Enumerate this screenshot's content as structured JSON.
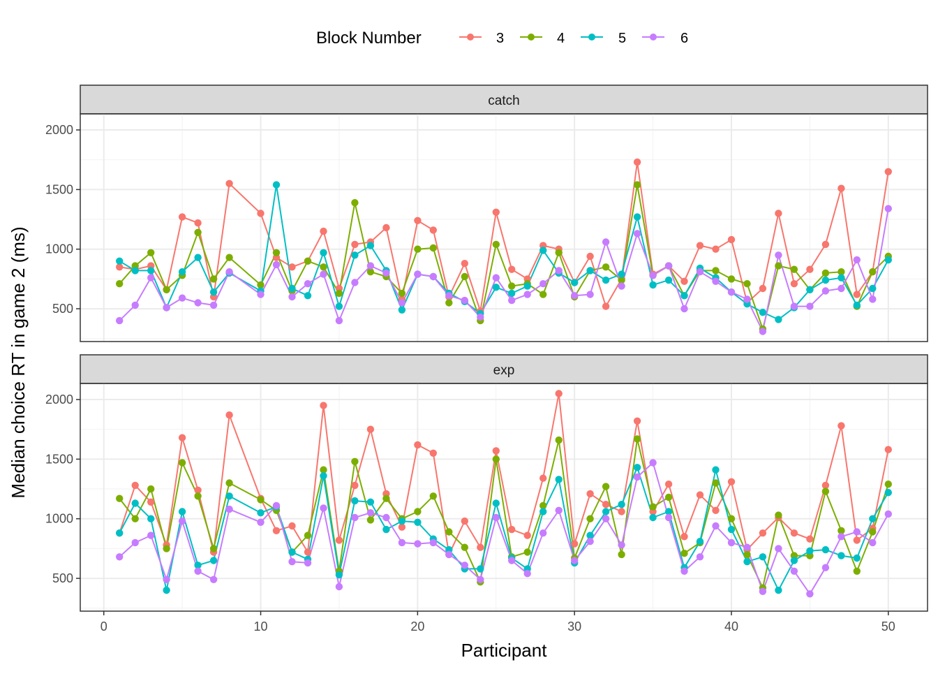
{
  "legend": {
    "title": "Block Number",
    "position": "top",
    "items": [
      {
        "label": "3",
        "color": "#F8766D"
      },
      {
        "label": "4",
        "color": "#7CAE00"
      },
      {
        "label": "5",
        "color": "#00BFC4"
      },
      {
        "label": "6",
        "color": "#C77CFF"
      }
    ]
  },
  "axes": {
    "xlabel": "Participant",
    "ylabel": "Median choice RT in game 2 (ms)",
    "xticks": [
      0,
      10,
      20,
      30,
      40,
      50
    ],
    "yticks": [
      500,
      1000,
      1500,
      2000
    ]
  },
  "chart_data": {
    "type": "line",
    "xlabel": "Participant",
    "ylabel": "Median choice RT in game 2 (ms)",
    "xlim": [
      -1.5,
      52.5
    ],
    "grid": true,
    "legend_position": "top",
    "panels": [
      {
        "strip": "catch",
        "ylim": [
          225,
          2135
        ],
        "series": [
          {
            "name": "3",
            "x": [
              1,
              2,
              3,
              4,
              5,
              6,
              7,
              8,
              10,
              11,
              12,
              13,
              14,
              15,
              16,
              17,
              18,
              19,
              20,
              21,
              22,
              23,
              24,
              25,
              26,
              27,
              28,
              29,
              30,
              31,
              32,
              33,
              34,
              35,
              36,
              37,
              38,
              39,
              40,
              41,
              42,
              43,
              44,
              45,
              46,
              47,
              48,
              49,
              50
            ],
            "y": [
              850,
              830,
              860,
              660,
              1270,
              1220,
              600,
              1550,
              1300,
              930,
              850,
              900,
              1150,
              670,
              1040,
              1060,
              1180,
              580,
              1240,
              1160,
              600,
              880,
              480,
              1310,
              830,
              750,
              1030,
              1000,
              720,
              940,
              520,
              750,
              1730,
              790,
              860,
              730,
              1030,
              1000,
              1080,
              550,
              670,
              1300,
              710,
              830,
              1040,
              1510,
              620,
              810,
              1650
            ]
          },
          {
            "name": "4",
            "x": [
              1,
              2,
              3,
              4,
              5,
              6,
              7,
              8,
              10,
              11,
              12,
              13,
              14,
              15,
              16,
              17,
              18,
              19,
              20,
              21,
              22,
              23,
              24,
              25,
              26,
              27,
              28,
              29,
              30,
              31,
              32,
              33,
              34,
              35,
              36,
              37,
              38,
              39,
              40,
              41,
              42,
              43,
              44,
              45,
              46,
              47,
              48,
              49,
              50
            ],
            "y": [
              710,
              860,
              970,
              660,
              780,
              1140,
              750,
              930,
              700,
              970,
              650,
              900,
              850,
              630,
              1390,
              810,
              770,
              630,
              1000,
              1010,
              550,
              770,
              400,
              1040,
              690,
              710,
              620,
              970,
              600,
              820,
              850,
              740,
              1540,
              780,
              860,
              610,
              820,
              820,
              750,
              710,
              330,
              860,
              830,
              660,
              800,
              810,
              520,
              810,
              940
            ]
          },
          {
            "name": "5",
            "x": [
              1,
              2,
              3,
              4,
              5,
              6,
              7,
              8,
              10,
              11,
              12,
              13,
              14,
              15,
              16,
              17,
              18,
              19,
              20,
              21,
              22,
              23,
              24,
              25,
              26,
              27,
              28,
              29,
              30,
              31,
              32,
              33,
              34,
              35,
              36,
              37,
              38,
              39,
              40,
              41,
              42,
              43,
              44,
              45,
              46,
              47,
              48,
              49,
              50
            ],
            "y": [
              900,
              820,
              820,
              510,
              810,
              930,
              640,
              800,
              650,
              1540,
              670,
              610,
              970,
              520,
              950,
              1030,
              820,
              490,
              790,
              770,
              630,
              560,
              460,
              680,
              630,
              690,
              990,
              800,
              720,
              820,
              740,
              790,
              1270,
              700,
              740,
              610,
              840,
              760,
              640,
              540,
              470,
              410,
              510,
              660,
              740,
              760,
              530,
              670,
              910
            ]
          },
          {
            "name": "6",
            "x": [
              1,
              2,
              3,
              4,
              5,
              6,
              7,
              8,
              10,
              11,
              12,
              13,
              14,
              15,
              16,
              17,
              18,
              19,
              20,
              21,
              22,
              23,
              24,
              25,
              26,
              27,
              28,
              29,
              30,
              31,
              32,
              33,
              34,
              35,
              36,
              37,
              38,
              39,
              40,
              41,
              42,
              43,
              44,
              45,
              46,
              47,
              48,
              49,
              50
            ],
            "y": [
              400,
              530,
              760,
              510,
              590,
              550,
              530,
              810,
              620,
              870,
              600,
              710,
              790,
              400,
              720,
              860,
              800,
              550,
              790,
              770,
              610,
              570,
              430,
              760,
              570,
              620,
              710,
              820,
              610,
              620,
              1060,
              690,
              1130,
              780,
              860,
              500,
              810,
              730,
              640,
              580,
              310,
              950,
              520,
              520,
              650,
              670,
              910,
              580,
              1340
            ]
          }
        ]
      },
      {
        "strip": "exp",
        "ylim": [
          225,
          2135
        ],
        "series": [
          {
            "name": "3",
            "x": [
              1,
              2,
              3,
              4,
              5,
              6,
              7,
              8,
              10,
              11,
              12,
              13,
              14,
              15,
              16,
              17,
              18,
              19,
              20,
              21,
              22,
              23,
              24,
              25,
              26,
              27,
              28,
              29,
              30,
              31,
              32,
              33,
              34,
              35,
              36,
              37,
              38,
              39,
              40,
              41,
              42,
              43,
              44,
              45,
              46,
              47,
              48,
              49,
              50
            ],
            "y": [
              880,
              1280,
              1140,
              780,
              1680,
              1240,
              720,
              1870,
              1170,
              900,
              940,
              720,
              1950,
              820,
              1280,
              1750,
              1210,
              930,
              1620,
              1550,
              700,
              980,
              760,
              1570,
              910,
              860,
              1340,
              2050,
              790,
              1210,
              1120,
              1060,
              1820,
              1060,
              1290,
              850,
              1200,
              1070,
              1310,
              740,
              880,
              1010,
              880,
              830,
              1280,
              1780,
              820,
              920,
              1580
            ]
          },
          {
            "name": "4",
            "x": [
              1,
              2,
              3,
              4,
              5,
              6,
              7,
              8,
              10,
              11,
              12,
              13,
              14,
              15,
              16,
              17,
              18,
              19,
              20,
              21,
              22,
              23,
              24,
              25,
              26,
              27,
              28,
              29,
              30,
              31,
              32,
              33,
              34,
              35,
              36,
              37,
              38,
              39,
              40,
              41,
              42,
              43,
              44,
              45,
              46,
              47,
              48,
              49,
              50
            ],
            "y": [
              1170,
              1000,
              1250,
              750,
              1470,
              1190,
              750,
              1300,
              1160,
              1070,
              720,
              860,
              1410,
              560,
              1480,
              990,
              1170,
              1000,
              1060,
              1190,
              890,
              760,
              470,
              1500,
              680,
              720,
              1110,
              1660,
              670,
              1000,
              1270,
              700,
              1670,
              1100,
              1180,
              710,
              800,
              1300,
              1000,
              700,
              420,
              1030,
              690,
              690,
              1230,
              900,
              560,
              890,
              1290
            ]
          },
          {
            "name": "5",
            "x": [
              1,
              2,
              3,
              4,
              5,
              6,
              7,
              8,
              10,
              11,
              12,
              13,
              14,
              15,
              16,
              17,
              18,
              19,
              20,
              21,
              22,
              23,
              24,
              25,
              26,
              27,
              28,
              29,
              30,
              31,
              32,
              33,
              34,
              35,
              36,
              37,
              38,
              39,
              40,
              41,
              42,
              43,
              44,
              45,
              46,
              47,
              48,
              49,
              50
            ],
            "y": [
              880,
              1130,
              1000,
              400,
              1060,
              610,
              650,
              1190,
              1050,
              1100,
              720,
              660,
              1360,
              530,
              1150,
              1140,
              910,
              980,
              970,
              830,
              740,
              580,
              580,
              1130,
              670,
              580,
              1060,
              1330,
              630,
              860,
              1060,
              1120,
              1430,
              1010,
              1060,
              590,
              810,
              1410,
              910,
              640,
              680,
              400,
              650,
              730,
              740,
              690,
              670,
              1000,
              1220
            ]
          },
          {
            "name": "6",
            "x": [
              1,
              2,
              3,
              4,
              5,
              6,
              7,
              8,
              10,
              11,
              12,
              13,
              14,
              15,
              16,
              17,
              18,
              19,
              20,
              21,
              22,
              23,
              24,
              25,
              26,
              27,
              28,
              29,
              30,
              31,
              32,
              33,
              34,
              35,
              36,
              37,
              38,
              39,
              40,
              41,
              42,
              43,
              44,
              45,
              46,
              47,
              48,
              49,
              50
            ],
            "y": [
              680,
              800,
              860,
              490,
              980,
              560,
              490,
              1080,
              970,
              1110,
              640,
              630,
              1090,
              430,
              1010,
              1050,
              1010,
              800,
              790,
              800,
              700,
              610,
              490,
              1010,
              650,
              540,
              880,
              1070,
              650,
              810,
              1000,
              780,
              1350,
              1470,
              1010,
              560,
              680,
              940,
              800,
              760,
              390,
              750,
              560,
              370,
              590,
              850,
              890,
              800,
              1040
            ]
          }
        ]
      }
    ]
  }
}
